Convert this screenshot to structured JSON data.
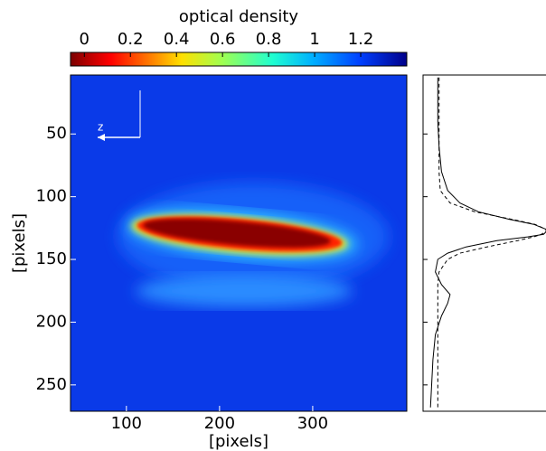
{
  "chart_data": [
    {
      "type": "heatmap",
      "xlabel": "[pixels]",
      "ylabel": "[pixels]",
      "xlim": [
        40,
        401
      ],
      "xticks": [
        100,
        200,
        300
      ],
      "ylim": [
        3,
        271
      ],
      "yticks": [
        50,
        100,
        150,
        200,
        250
      ],
      "annotation": "z",
      "colorbar": {
        "label": "optical density",
        "lim": [
          -0.06,
          1.4
        ],
        "ticks": [
          0,
          0.2,
          0.4,
          0.6,
          0.8,
          1,
          1.2
        ]
      }
    },
    {
      "type": "profile",
      "xlim": [
        0,
        1
      ],
      "ylim": [
        3,
        271
      ],
      "yticks": [
        50,
        100,
        150,
        200,
        250
      ],
      "y": [
        5,
        20,
        40,
        60,
        80,
        95,
        105,
        112,
        118,
        122,
        126,
        128,
        130,
        132,
        135,
        140,
        145,
        150,
        160,
        170,
        178,
        185,
        195,
        210,
        230,
        250,
        268
      ],
      "series": [
        {
          "color": "#000000",
          "dash": false,
          "values": [
            0.12,
            0.12,
            0.12,
            0.13,
            0.15,
            0.2,
            0.3,
            0.45,
            0.7,
            0.9,
            1.0,
            1.0,
            0.98,
            0.85,
            0.6,
            0.35,
            0.2,
            0.12,
            0.1,
            0.15,
            0.22,
            0.2,
            0.15,
            0.1,
            0.08,
            0.07,
            0.06
          ]
        },
        {
          "color": "#000000",
          "dash": true,
          "values": [
            0.13,
            0.13,
            0.13,
            0.13,
            0.13,
            0.14,
            0.22,
            0.42,
            0.72,
            0.91,
            1.0,
            1.0,
            0.96,
            0.9,
            0.77,
            0.52,
            0.3,
            0.2,
            0.13,
            0.12,
            0.12,
            0.12,
            0.12,
            0.12,
            0.12,
            0.12,
            0.12
          ]
        }
      ]
    }
  ]
}
